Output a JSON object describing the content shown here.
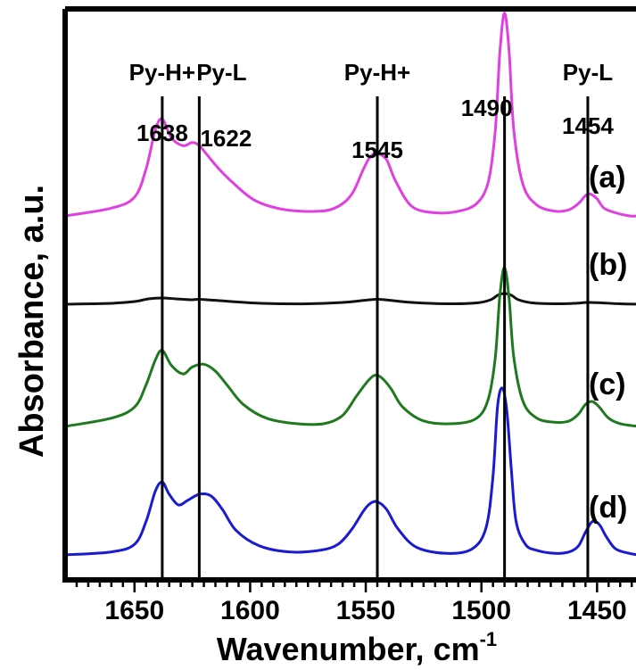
{
  "chart_data": {
    "type": "line",
    "xlabel": "Wavenumber, cm",
    "xlabel_sup": "-1",
    "ylabel": "Absorbance, a.u.",
    "xlim": [
      1680,
      1432
    ],
    "x_reversed": true,
    "x_ticks": [
      1650,
      1600,
      1550,
      1500,
      1450
    ],
    "y_ticks_shown": false,
    "grid": false,
    "legend": "none",
    "reference_lines": [
      {
        "x": 1638,
        "label": "1638",
        "band": "Py-H+"
      },
      {
        "x": 1622,
        "label": "1622",
        "band": "Py-L"
      },
      {
        "x": 1545,
        "label": "1545",
        "band": "Py-H+"
      },
      {
        "x": 1490,
        "label": "1490",
        "band": ""
      },
      {
        "x": 1454,
        "label": "1454",
        "band": "Py-L"
      }
    ],
    "series": [
      {
        "label": "(a)",
        "color": "#e040e0",
        "x": [
          1680,
          1660,
          1650,
          1645,
          1641,
          1638,
          1634,
          1629,
          1625,
          1622,
          1618,
          1614,
          1608,
          1598,
          1585,
          1570,
          1562,
          1556,
          1551,
          1548,
          1545,
          1541,
          1537,
          1530,
          1520,
          1510,
          1502,
          1497,
          1494,
          1492,
          1490,
          1488,
          1486,
          1482,
          1476,
          1468,
          1462,
          1458,
          1455,
          1453,
          1450,
          1447,
          1442,
          1436,
          1432
        ],
        "y": [
          0.0,
          0.05,
          0.12,
          0.3,
          0.55,
          0.62,
          0.5,
          0.45,
          0.47,
          0.45,
          0.38,
          0.31,
          0.22,
          0.1,
          0.04,
          0.03,
          0.06,
          0.14,
          0.3,
          0.38,
          0.4,
          0.36,
          0.22,
          0.06,
          0.02,
          0.03,
          0.08,
          0.22,
          0.55,
          1.05,
          1.3,
          1.05,
          0.55,
          0.2,
          0.07,
          0.03,
          0.04,
          0.08,
          0.13,
          0.14,
          0.11,
          0.05,
          0.02,
          0.0,
          0.0
        ]
      },
      {
        "label": "(b)",
        "color": "#111111",
        "x": [
          1680,
          1660,
          1650,
          1644,
          1638,
          1632,
          1626,
          1622,
          1616,
          1608,
          1595,
          1575,
          1560,
          1550,
          1545,
          1540,
          1530,
          1515,
          1502,
          1496,
          1493,
          1490,
          1487,
          1484,
          1478,
          1468,
          1460,
          1454,
          1448,
          1440,
          1432
        ],
        "y": [
          0.0,
          0.02,
          0.06,
          0.12,
          0.14,
          0.12,
          0.1,
          0.11,
          0.09,
          0.06,
          0.02,
          0.01,
          0.04,
          0.09,
          0.11,
          0.09,
          0.04,
          0.01,
          0.03,
          0.1,
          0.2,
          0.24,
          0.2,
          0.1,
          0.03,
          0.01,
          0.02,
          0.04,
          0.03,
          0.01,
          0.0
        ]
      },
      {
        "label": "(c)",
        "color": "#1f7a1f",
        "x": [
          1680,
          1660,
          1650,
          1645,
          1641,
          1638,
          1634,
          1629,
          1625,
          1620,
          1615,
          1610,
          1603,
          1593,
          1580,
          1568,
          1560,
          1554,
          1549,
          1546,
          1543,
          1539,
          1534,
          1525,
          1512,
          1502,
          1497,
          1494,
          1492,
          1490,
          1488,
          1486,
          1482,
          1476,
          1468,
          1462,
          1458,
          1455,
          1452,
          1449,
          1445,
          1440,
          1432
        ],
        "y": [
          0.0,
          0.06,
          0.14,
          0.3,
          0.48,
          0.55,
          0.44,
          0.38,
          0.43,
          0.45,
          0.4,
          0.3,
          0.16,
          0.06,
          0.02,
          0.02,
          0.08,
          0.22,
          0.33,
          0.37,
          0.35,
          0.27,
          0.14,
          0.04,
          0.02,
          0.06,
          0.2,
          0.5,
          0.95,
          1.15,
          0.92,
          0.5,
          0.18,
          0.06,
          0.03,
          0.04,
          0.09,
          0.16,
          0.18,
          0.14,
          0.06,
          0.02,
          0.0
        ]
      },
      {
        "label": "(d)",
        "color": "#1a1ad0",
        "x": [
          1680,
          1660,
          1650,
          1645,
          1641,
          1638,
          1635,
          1631,
          1627,
          1622,
          1617,
          1612,
          1606,
          1596,
          1583,
          1570,
          1562,
          1556,
          1551,
          1548,
          1545,
          1541,
          1536,
          1528,
          1515,
          1504,
          1498,
          1495,
          1493,
          1491,
          1489,
          1487,
          1485,
          1481,
          1476,
          1468,
          1462,
          1458,
          1455,
          1452,
          1449,
          1446,
          1442,
          1436,
          1432
        ],
        "y": [
          0.0,
          0.02,
          0.07,
          0.22,
          0.42,
          0.48,
          0.4,
          0.33,
          0.36,
          0.4,
          0.39,
          0.3,
          0.16,
          0.06,
          0.02,
          0.03,
          0.07,
          0.17,
          0.29,
          0.34,
          0.35,
          0.3,
          0.17,
          0.05,
          0.01,
          0.04,
          0.18,
          0.52,
          0.98,
          1.1,
          0.95,
          0.55,
          0.22,
          0.07,
          0.03,
          0.01,
          0.02,
          0.06,
          0.15,
          0.22,
          0.2,
          0.12,
          0.04,
          0.01,
          0.0
        ]
      }
    ]
  }
}
